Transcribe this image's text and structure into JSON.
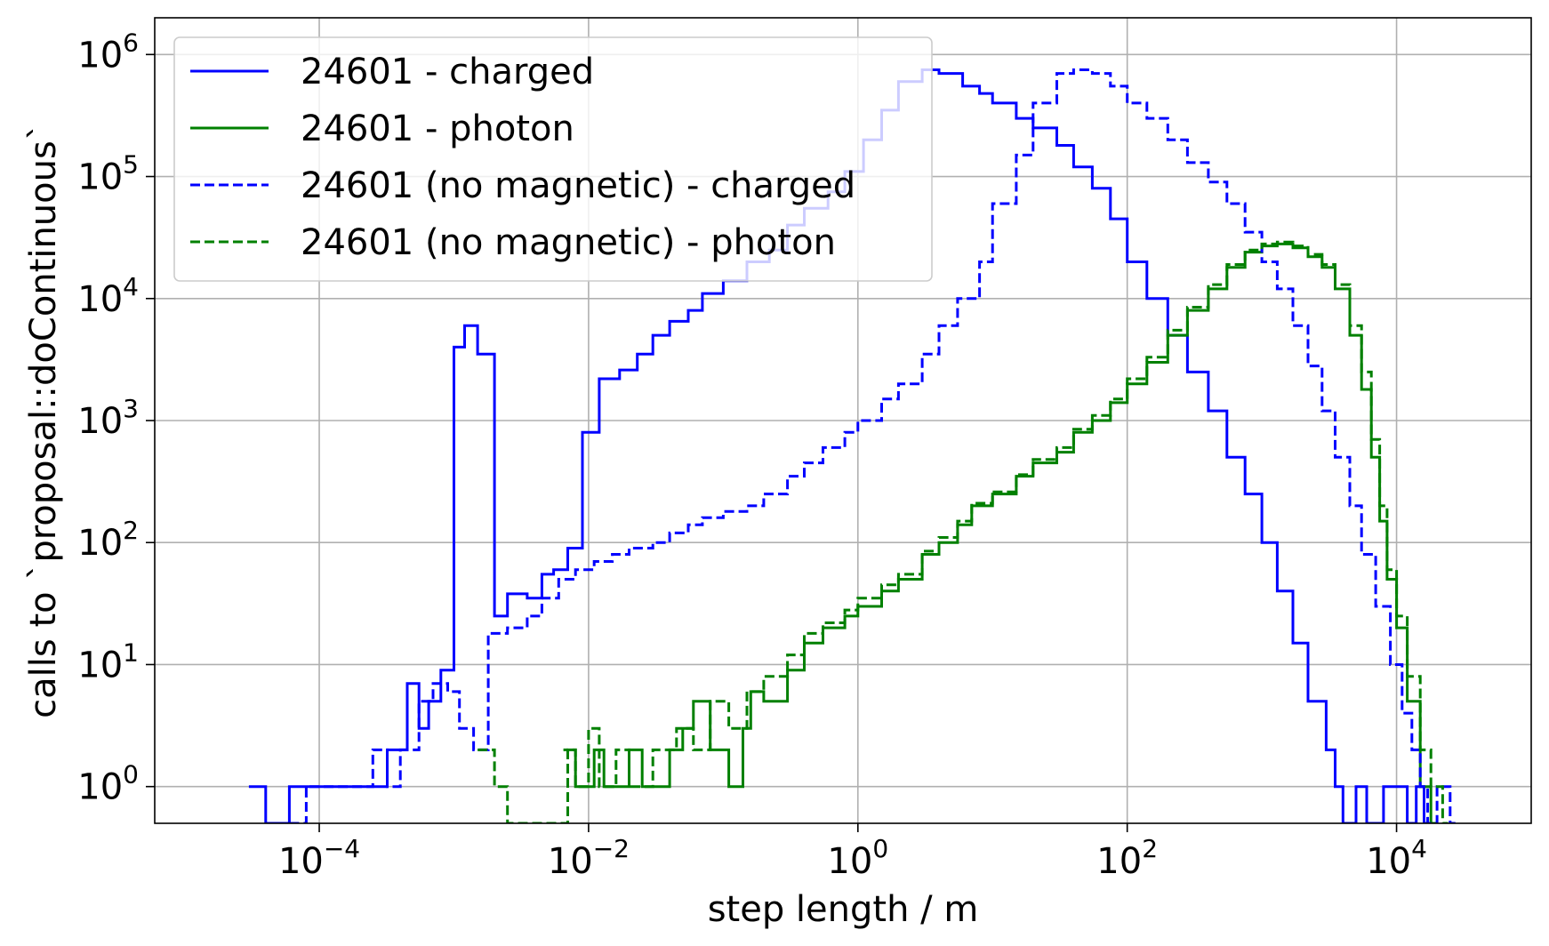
{
  "chart_data": {
    "type": "line",
    "subtype": "step-histogram",
    "title": "",
    "xlabel": "step length / m",
    "ylabel": "calls to `proposal::doContinuous`",
    "xscale": "log",
    "yscale": "log",
    "xlim": [
      6e-06,
      100000.0
    ],
    "ylim": [
      0.5,
      2000000.0
    ],
    "grid": true,
    "legend_position": "top-left",
    "x_ticks": [
      {
        "exp": "-4",
        "base": "10"
      },
      {
        "exp": "-2",
        "base": "10"
      },
      {
        "exp": "0",
        "base": "10"
      },
      {
        "exp": "2",
        "base": "10"
      },
      {
        "exp": "4",
        "base": "10"
      }
    ],
    "y_ticks": [
      {
        "exp": "0",
        "base": "10"
      },
      {
        "exp": "1",
        "base": "10"
      },
      {
        "exp": "2",
        "base": "10"
      },
      {
        "exp": "3",
        "base": "10"
      },
      {
        "exp": "4",
        "base": "10"
      },
      {
        "exp": "5",
        "base": "10"
      },
      {
        "exp": "6",
        "base": "10"
      }
    ],
    "series": [
      {
        "name": "24601 - charged",
        "color": "#0000ff",
        "dash": "solid",
        "points": [
          [
            3e-05,
            1
          ],
          [
            4e-05,
            0.5
          ],
          [
            6e-05,
            1
          ],
          [
            0.00015,
            1
          ],
          [
            0.00032,
            2
          ],
          [
            0.00045,
            7
          ],
          [
            0.00055,
            3
          ],
          [
            0.00065,
            5
          ],
          [
            0.0008,
            9
          ],
          [
            0.001,
            4000
          ],
          [
            0.0012,
            6000
          ],
          [
            0.0015,
            3500
          ],
          [
            0.002,
            25
          ],
          [
            0.0025,
            38
          ],
          [
            0.0035,
            35
          ],
          [
            0.0045,
            55
          ],
          [
            0.0055,
            60
          ],
          [
            0.007,
            90
          ],
          [
            0.009,
            800
          ],
          [
            0.012,
            2200
          ],
          [
            0.017,
            2600
          ],
          [
            0.023,
            3500
          ],
          [
            0.03,
            5000
          ],
          [
            0.04,
            6500
          ],
          [
            0.055,
            8000
          ],
          [
            0.07,
            11000
          ],
          [
            0.1,
            14000
          ],
          [
            0.15,
            20000
          ],
          [
            0.22,
            25000
          ],
          [
            0.3,
            40000
          ],
          [
            0.4,
            55000
          ],
          [
            0.6,
            75000
          ],
          [
            0.8,
            110000
          ],
          [
            1.1,
            200000
          ],
          [
            1.5,
            350000
          ],
          [
            2,
            600000
          ],
          [
            3,
            750000
          ],
          [
            4,
            700000
          ],
          [
            6,
            550000
          ],
          [
            8,
            480000
          ],
          [
            10,
            400000
          ],
          [
            15,
            300000
          ],
          [
            20,
            250000
          ],
          [
            30,
            180000
          ],
          [
            40,
            120000
          ],
          [
            55,
            80000
          ],
          [
            75,
            45000
          ],
          [
            100,
            20000
          ],
          [
            140,
            10000
          ],
          [
            200,
            5000
          ],
          [
            280,
            2500
          ],
          [
            400,
            1200
          ],
          [
            550,
            500
          ],
          [
            750,
            250
          ],
          [
            1000,
            100
          ],
          [
            1300,
            40
          ],
          [
            1700,
            15
          ],
          [
            2200,
            5
          ],
          [
            3000,
            2
          ],
          [
            3500,
            1
          ],
          [
            4000,
            0.5
          ],
          [
            5000,
            1
          ],
          [
            6000,
            0.5
          ],
          [
            8000,
            1
          ],
          [
            12000,
            0.5
          ],
          [
            14000,
            1
          ],
          [
            16000,
            0.5
          ]
        ]
      },
      {
        "name": "24601 - photon",
        "color": "#008000",
        "dash": "solid",
        "points": [
          [
            0.0065,
            2
          ],
          [
            0.008,
            1
          ],
          [
            0.011,
            2
          ],
          [
            0.013,
            1
          ],
          [
            0.02,
            2
          ],
          [
            0.025,
            1
          ],
          [
            0.04,
            2
          ],
          [
            0.05,
            3
          ],
          [
            0.06,
            5
          ],
          [
            0.08,
            2
          ],
          [
            0.11,
            1
          ],
          [
            0.14,
            3
          ],
          [
            0.16,
            6
          ],
          [
            0.2,
            5
          ],
          [
            0.3,
            9
          ],
          [
            0.4,
            15
          ],
          [
            0.55,
            20
          ],
          [
            0.8,
            25
          ],
          [
            1,
            30
          ],
          [
            1.5,
            40
          ],
          [
            2,
            50
          ],
          [
            3,
            80
          ],
          [
            4,
            100
          ],
          [
            5.5,
            140
          ],
          [
            7,
            200
          ],
          [
            10,
            250
          ],
          [
            15,
            350
          ],
          [
            20,
            450
          ],
          [
            30,
            550
          ],
          [
            40,
            800
          ],
          [
            55,
            1000
          ],
          [
            75,
            1400
          ],
          [
            100,
            2000
          ],
          [
            140,
            3000
          ],
          [
            200,
            5000
          ],
          [
            280,
            8000
          ],
          [
            400,
            12000
          ],
          [
            550,
            18000
          ],
          [
            750,
            24000
          ],
          [
            1000,
            27000
          ],
          [
            1300,
            28000
          ],
          [
            1700,
            26000
          ],
          [
            2200,
            22000
          ],
          [
            2800,
            18000
          ],
          [
            3500,
            12000
          ],
          [
            4500,
            5000
          ],
          [
            5500,
            1800
          ],
          [
            6500,
            500
          ],
          [
            7500,
            150
          ],
          [
            8500,
            50
          ],
          [
            10000,
            20
          ],
          [
            12000,
            5
          ],
          [
            15000,
            1
          ],
          [
            18000,
            0.5
          ]
        ]
      },
      {
        "name": "24601 (no magnetic) - charged",
        "color": "#0000ff",
        "dash": "dashed",
        "points": [
          [
            6e-05,
            0.5
          ],
          [
            8e-05,
            1
          ],
          [
            0.00025,
            2
          ],
          [
            0.00032,
            1
          ],
          [
            0.0004,
            2
          ],
          [
            0.00055,
            5
          ],
          [
            0.0007,
            7
          ],
          [
            0.0009,
            6
          ],
          [
            0.0011,
            3
          ],
          [
            0.0014,
            2
          ],
          [
            0.0018,
            18
          ],
          [
            0.0025,
            20
          ],
          [
            0.0035,
            25
          ],
          [
            0.0045,
            35
          ],
          [
            0.006,
            50
          ],
          [
            0.008,
            60
          ],
          [
            0.011,
            70
          ],
          [
            0.015,
            80
          ],
          [
            0.02,
            90
          ],
          [
            0.03,
            100
          ],
          [
            0.04,
            120
          ],
          [
            0.055,
            140
          ],
          [
            0.07,
            160
          ],
          [
            0.1,
            180
          ],
          [
            0.15,
            200
          ],
          [
            0.2,
            250
          ],
          [
            0.3,
            350
          ],
          [
            0.4,
            450
          ],
          [
            0.55,
            600
          ],
          [
            0.8,
            800
          ],
          [
            1,
            1000
          ],
          [
            1.5,
            1500
          ],
          [
            2,
            2000
          ],
          [
            3,
            3500
          ],
          [
            4,
            6000
          ],
          [
            5.5,
            10000
          ],
          [
            8,
            20000
          ],
          [
            10,
            60000
          ],
          [
            15,
            150000
          ],
          [
            20,
            400000
          ],
          [
            30,
            700000
          ],
          [
            40,
            750000
          ],
          [
            55,
            700000
          ],
          [
            75,
            550000
          ],
          [
            100,
            400000
          ],
          [
            140,
            300000
          ],
          [
            200,
            200000
          ],
          [
            280,
            130000
          ],
          [
            400,
            90000
          ],
          [
            550,
            60000
          ],
          [
            750,
            35000
          ],
          [
            1000,
            20000
          ],
          [
            1300,
            12000
          ],
          [
            1700,
            6000
          ],
          [
            2200,
            2800
          ],
          [
            2800,
            1200
          ],
          [
            3500,
            500
          ],
          [
            4500,
            200
          ],
          [
            5500,
            80
          ],
          [
            7000,
            30
          ],
          [
            9000,
            10
          ],
          [
            11000,
            4
          ],
          [
            13000,
            2
          ],
          [
            15000,
            1
          ],
          [
            17000,
            0.5
          ],
          [
            20000,
            1
          ],
          [
            25000,
            0.5
          ]
        ]
      },
      {
        "name": "24601 (no magnetic) - photon",
        "color": "#008000",
        "dash": "dashed",
        "points": [
          [
            0.0015,
            2
          ],
          [
            0.002,
            1
          ],
          [
            0.0025,
            0.5
          ],
          [
            0.007,
            2
          ],
          [
            0.008,
            1
          ],
          [
            0.01,
            3
          ],
          [
            0.012,
            1
          ],
          [
            0.016,
            2
          ],
          [
            0.02,
            1
          ],
          [
            0.03,
            2
          ],
          [
            0.045,
            3
          ],
          [
            0.06,
            2
          ],
          [
            0.08,
            5
          ],
          [
            0.11,
            3
          ],
          [
            0.15,
            6
          ],
          [
            0.2,
            8
          ],
          [
            0.3,
            12
          ],
          [
            0.4,
            18
          ],
          [
            0.55,
            22
          ],
          [
            0.8,
            28
          ],
          [
            1,
            35
          ],
          [
            1.5,
            45
          ],
          [
            2,
            55
          ],
          [
            3,
            85
          ],
          [
            4,
            110
          ],
          [
            5.5,
            150
          ],
          [
            7,
            210
          ],
          [
            10,
            260
          ],
          [
            15,
            360
          ],
          [
            20,
            480
          ],
          [
            30,
            600
          ],
          [
            40,
            850
          ],
          [
            55,
            1100
          ],
          [
            75,
            1500
          ],
          [
            100,
            2200
          ],
          [
            140,
            3300
          ],
          [
            200,
            5500
          ],
          [
            280,
            8500
          ],
          [
            400,
            13000
          ],
          [
            550,
            19000
          ],
          [
            750,
            25000
          ],
          [
            1000,
            28000
          ],
          [
            1300,
            29000
          ],
          [
            1700,
            27000
          ],
          [
            2200,
            23000
          ],
          [
            2800,
            19000
          ],
          [
            3500,
            13000
          ],
          [
            4500,
            6000
          ],
          [
            5500,
            2500
          ],
          [
            6500,
            700
          ],
          [
            7500,
            200
          ],
          [
            8500,
            60
          ],
          [
            10000,
            25
          ],
          [
            12000,
            8
          ],
          [
            15000,
            2
          ],
          [
            18000,
            1
          ],
          [
            22000,
            0.5
          ]
        ]
      }
    ]
  }
}
